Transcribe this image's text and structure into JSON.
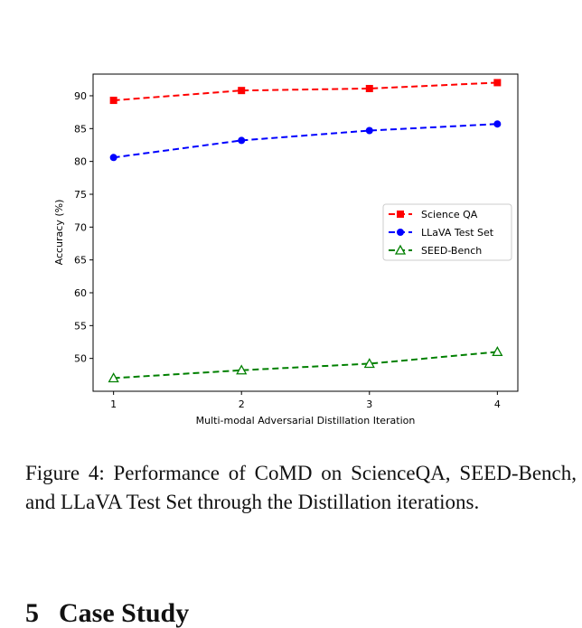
{
  "chart_data": {
    "type": "line",
    "title": "",
    "xlabel": "Multi-modal Adversarial Distillation Iteration",
    "ylabel": "Accuracy (%)",
    "x": [
      1,
      2,
      3,
      4
    ],
    "xticks": [
      "1",
      "2",
      "3",
      "4"
    ],
    "xlim": [
      0.84,
      4.16
    ],
    "ylim": [
      45.0,
      93.3
    ],
    "yticks": [
      "50",
      "55",
      "60",
      "65",
      "70",
      "75",
      "80",
      "85",
      "90"
    ],
    "grid": false,
    "legend_position": "center-right",
    "series": [
      {
        "name": "Science QA",
        "values": [
          89.3,
          90.8,
          91.1,
          92.0
        ],
        "color": "#ff0000",
        "marker": "square"
      },
      {
        "name": "LLaVA Test Set",
        "values": [
          80.6,
          83.2,
          84.7,
          85.7
        ],
        "color": "#0000ff",
        "marker": "circle"
      },
      {
        "name": "SEED-Bench",
        "values": [
          47.0,
          48.2,
          49.2,
          51.0
        ],
        "color": "#008000",
        "marker": "triangle-open"
      }
    ]
  },
  "caption": "Figure 4: Performance of CoMD on ScienceQA, SEED-Bench, and LLaVA Test Set through the Distillation iterations.",
  "section": {
    "number": "5",
    "title": "Case Study"
  }
}
